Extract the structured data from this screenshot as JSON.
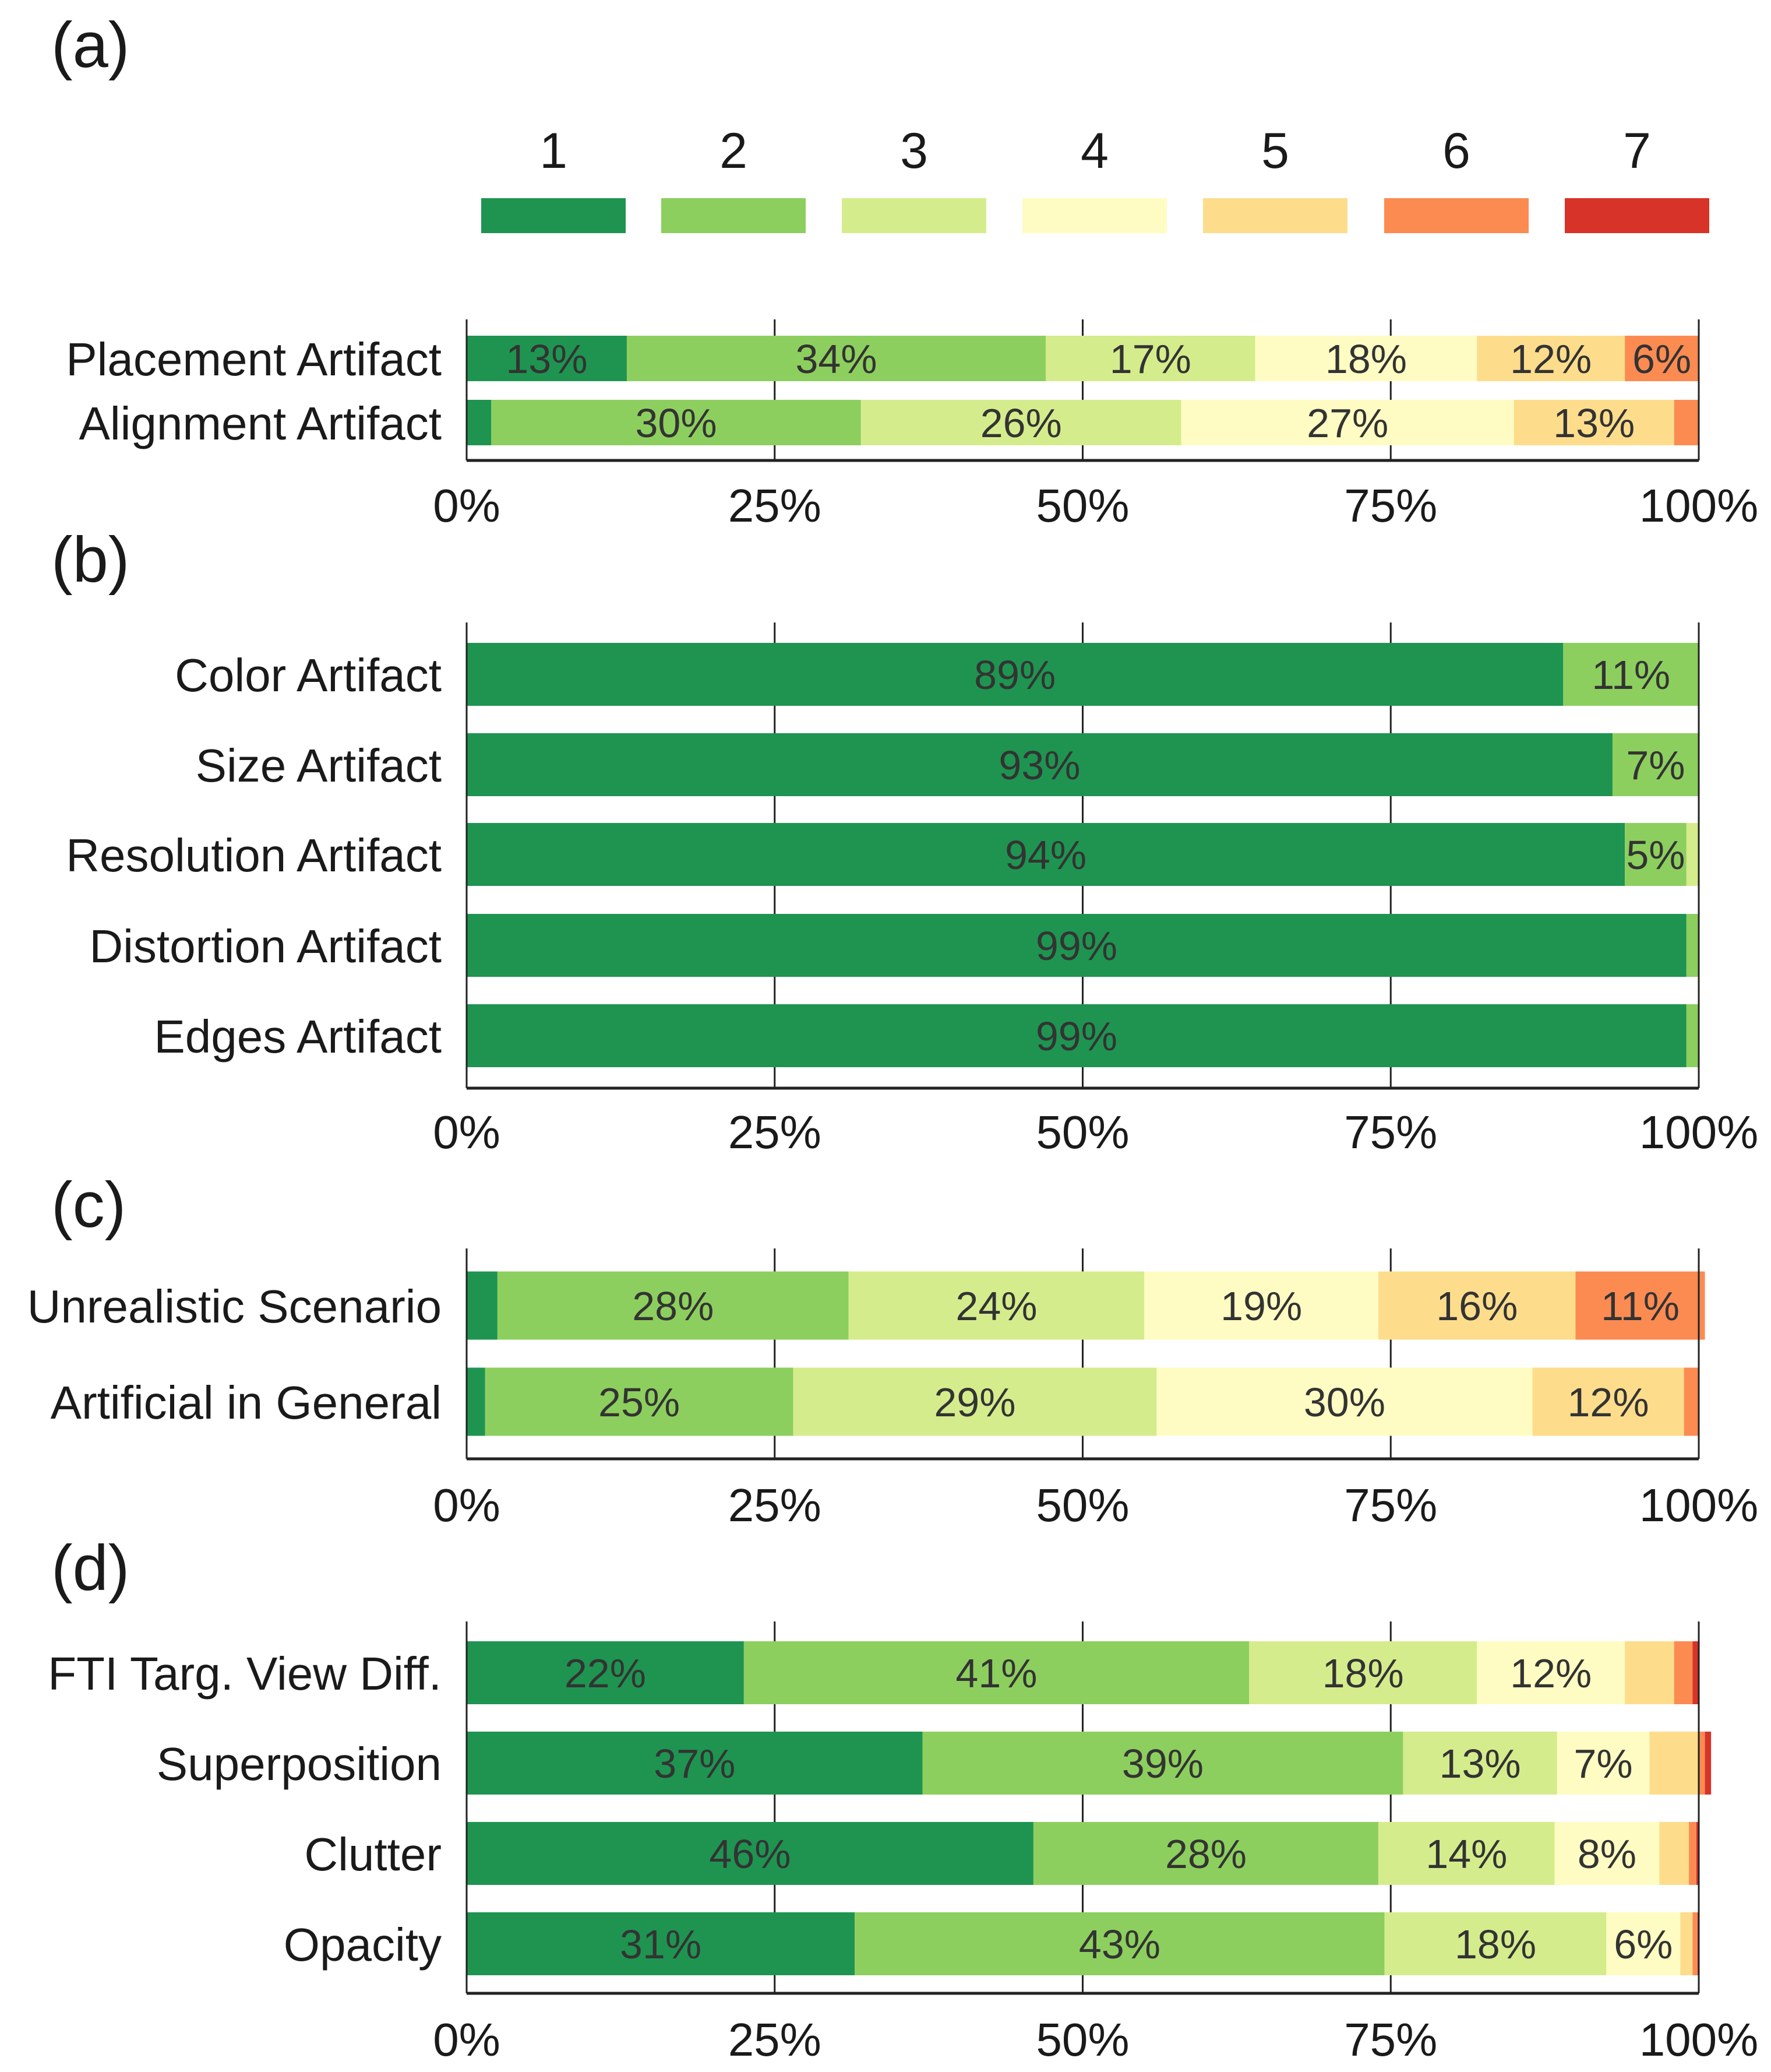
{
  "legend": {
    "items": [
      "1",
      "2",
      "3",
      "4",
      "5",
      "6",
      "7"
    ],
    "colors": [
      "#1e9450",
      "#8dcf5e",
      "#d5ec8c",
      "#fefcc2",
      "#fddd8c",
      "#fc8b52",
      "#d73328"
    ]
  },
  "chart_data": [
    {
      "type": "bar",
      "orientation": "horizontal-stacked",
      "panel": "(a)",
      "categories": [
        "Placement Artifact",
        "Alignment Artifact"
      ],
      "series": [
        {
          "name": "1",
          "values": [
            13,
            2
          ]
        },
        {
          "name": "2",
          "values": [
            34,
            30
          ]
        },
        {
          "name": "3",
          "values": [
            17,
            26
          ]
        },
        {
          "name": "4",
          "values": [
            18,
            27
          ]
        },
        {
          "name": "5",
          "values": [
            12,
            13
          ]
        },
        {
          "name": "6",
          "values": [
            6,
            2
          ]
        },
        {
          "name": "7",
          "values": [
            0,
            0
          ]
        }
      ],
      "data_labels": [
        [
          "13%",
          "34%",
          "17%",
          "18%",
          "12%",
          "6%",
          ""
        ],
        [
          "",
          "30%",
          "26%",
          "27%",
          "13%",
          "",
          ""
        ]
      ],
      "xlim": [
        0,
        100
      ],
      "xticks": [
        "0%",
        "25%",
        "50%",
        "75%",
        "100%"
      ],
      "grid": "vertical"
    },
    {
      "type": "bar",
      "orientation": "horizontal-stacked",
      "panel": "(b)",
      "categories": [
        "Color Artifact",
        "Size Artifact",
        "Resolution Artifact",
        "Distortion Artifact",
        "Edges Artifact"
      ],
      "series": [
        {
          "name": "1",
          "values": [
            89,
            93,
            94,
            99,
            99
          ]
        },
        {
          "name": "2",
          "values": [
            11,
            7,
            5,
            1,
            1
          ]
        },
        {
          "name": "3",
          "values": [
            0,
            0,
            1,
            0,
            0
          ]
        },
        {
          "name": "4",
          "values": [
            0,
            0,
            0,
            0,
            0
          ]
        },
        {
          "name": "5",
          "values": [
            0,
            0,
            0,
            0,
            0
          ]
        },
        {
          "name": "6",
          "values": [
            0,
            0,
            0,
            0,
            0
          ]
        },
        {
          "name": "7",
          "values": [
            0,
            0,
            0,
            0,
            0
          ]
        }
      ],
      "data_labels": [
        [
          "89%",
          "11%",
          "",
          "",
          "",
          "",
          ""
        ],
        [
          "93%",
          "7%",
          "",
          "",
          "",
          "",
          ""
        ],
        [
          "94%",
          "5%",
          "",
          "",
          "",
          "",
          ""
        ],
        [
          "99%",
          "",
          "",
          "",
          "",
          "",
          ""
        ],
        [
          "99%",
          "",
          "",
          "",
          "",
          "",
          ""
        ]
      ],
      "xlim": [
        0,
        100
      ],
      "xticks": [
        "0%",
        "25%",
        "50%",
        "75%",
        "100%"
      ],
      "grid": "vertical"
    },
    {
      "type": "bar",
      "orientation": "horizontal-stacked",
      "panel": "(c)",
      "categories": [
        "Unrealistic Scenario",
        "Artificial in General"
      ],
      "series": [
        {
          "name": "1",
          "values": [
            2.5,
            1.5
          ]
        },
        {
          "name": "2",
          "values": [
            28.5,
            25
          ]
        },
        {
          "name": "3",
          "values": [
            24,
            29.5
          ]
        },
        {
          "name": "4",
          "values": [
            19,
            30.5
          ]
        },
        {
          "name": "5",
          "values": [
            16,
            12.3
          ]
        },
        {
          "name": "6",
          "values": [
            10.5,
            1.2
          ]
        },
        {
          "name": "7",
          "values": [
            0,
            0
          ]
        }
      ],
      "data_labels": [
        [
          "",
          "28%",
          "24%",
          "19%",
          "16%",
          "11%",
          ""
        ],
        [
          "",
          "25%",
          "29%",
          "30%",
          "12%",
          "",
          ""
        ]
      ],
      "xlim": [
        0,
        100
      ],
      "xticks": [
        "0%",
        "25%",
        "50%",
        "75%",
        "100%"
      ],
      "grid": "vertical"
    },
    {
      "type": "bar",
      "orientation": "horizontal-stacked",
      "panel": "(d)",
      "categories": [
        "FTI Targ. View Diff.",
        "Superposition",
        "Clutter",
        "Opacity"
      ],
      "series": [
        {
          "name": "1",
          "values": [
            22.5,
            37,
            46,
            31.5
          ]
        },
        {
          "name": "2",
          "values": [
            41,
            39,
            28,
            43
          ]
        },
        {
          "name": "3",
          "values": [
            18.5,
            12.5,
            14.3,
            18
          ]
        },
        {
          "name": "4",
          "values": [
            12,
            7.5,
            8.5,
            6
          ]
        },
        {
          "name": "5",
          "values": [
            4,
            4,
            2.4,
            1
          ]
        },
        {
          "name": "6",
          "values": [
            1.5,
            0.5,
            0.6,
            0.4
          ]
        },
        {
          "name": "7",
          "values": [
            0.5,
            0.5,
            0.2,
            0.1
          ]
        }
      ],
      "data_labels": [
        [
          "22%",
          "41%",
          "18%",
          "12%",
          "",
          "",
          ""
        ],
        [
          "37%",
          "39%",
          "13%",
          "7%",
          "",
          "",
          ""
        ],
        [
          "46%",
          "28%",
          "14%",
          "8%",
          "",
          "",
          ""
        ],
        [
          "31%",
          "43%",
          "18%",
          "6%",
          "",
          "",
          ""
        ]
      ],
      "xlim": [
        0,
        100
      ],
      "xticks": [
        "0%",
        "25%",
        "50%",
        "75%",
        "100%"
      ],
      "grid": "vertical"
    }
  ]
}
